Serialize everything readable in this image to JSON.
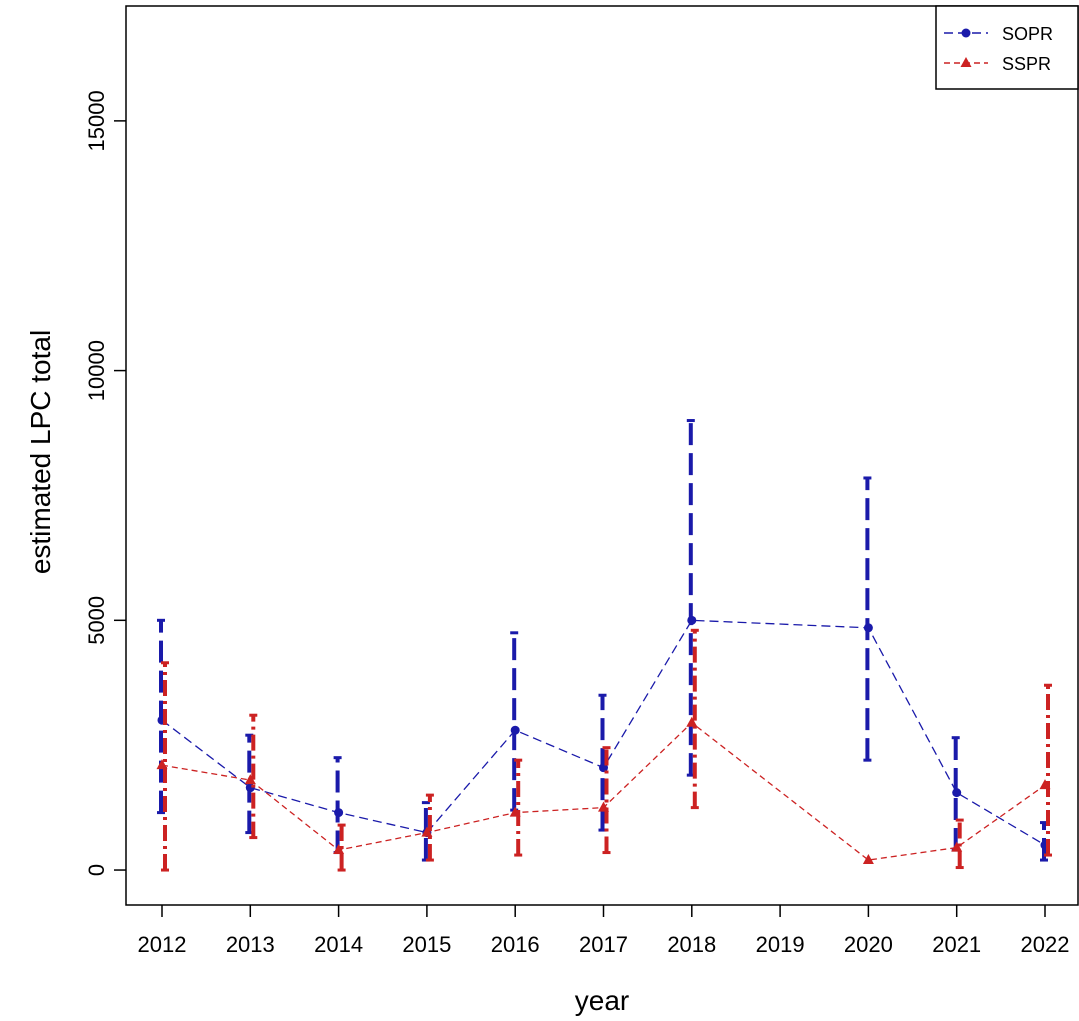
{
  "chart_data": {
    "type": "line",
    "title": "",
    "xlabel": "year",
    "ylabel": "estimated LPC total",
    "x": [
      "2012",
      "2013",
      "2014",
      "2015",
      "2016",
      "2017",
      "2018",
      "2019",
      "2020",
      "2021",
      "2022"
    ],
    "ylim": [
      -700,
      17300
    ],
    "yticks": [
      0,
      5000,
      10000,
      15000
    ],
    "grid": false,
    "legend_position": "top-right",
    "series": [
      {
        "name": "SOPR",
        "color": "#1a1aaa",
        "marker": "circle",
        "line_style": "dashed",
        "points": [
          {
            "x": "2012",
            "y": 3000,
            "lower": 1150,
            "upper": 5000
          },
          {
            "x": "2013",
            "y": 1650,
            "lower": 750,
            "upper": 2700
          },
          {
            "x": "2014",
            "y": 1150,
            "lower": 350,
            "upper": 2250
          },
          {
            "x": "2015",
            "y": 750,
            "lower": 200,
            "upper": 1350
          },
          {
            "x": "2016",
            "y": 2800,
            "lower": 1200,
            "upper": 4750
          },
          {
            "x": "2017",
            "y": 2050,
            "lower": 800,
            "upper": 3500
          },
          {
            "x": "2018",
            "y": 5000,
            "lower": 1900,
            "upper": 9000
          },
          {
            "x": "2020",
            "y": 4850,
            "lower": 2200,
            "upper": 7850
          },
          {
            "x": "2021",
            "y": 1550,
            "lower": 400,
            "upper": 2650
          },
          {
            "x": "2022",
            "y": 500,
            "lower": 200,
            "upper": 950
          }
        ]
      },
      {
        "name": "SSPR",
        "color": "#cc2222",
        "marker": "triangle",
        "line_style": "dashed",
        "points": [
          {
            "x": "2012",
            "y": 2100,
            "lower": 0,
            "upper": 4150
          },
          {
            "x": "2013",
            "y": 1800,
            "lower": 650,
            "upper": 3100
          },
          {
            "x": "2014",
            "y": 400,
            "lower": 0,
            "upper": 900
          },
          {
            "x": "2015",
            "y": 750,
            "lower": 200,
            "upper": 1500
          },
          {
            "x": "2016",
            "y": 1150,
            "lower": 300,
            "upper": 2200
          },
          {
            "x": "2017",
            "y": 1250,
            "lower": 350,
            "upper": 2450
          },
          {
            "x": "2018",
            "y": 2950,
            "lower": 1250,
            "upper": 4800
          },
          {
            "x": "2020",
            "y": 200,
            "lower": 200,
            "upper": 200
          },
          {
            "x": "2021",
            "y": 450,
            "lower": 50,
            "upper": 1000
          },
          {
            "x": "2022",
            "y": 1700,
            "lower": 300,
            "upper": 3700
          }
        ]
      }
    ]
  }
}
